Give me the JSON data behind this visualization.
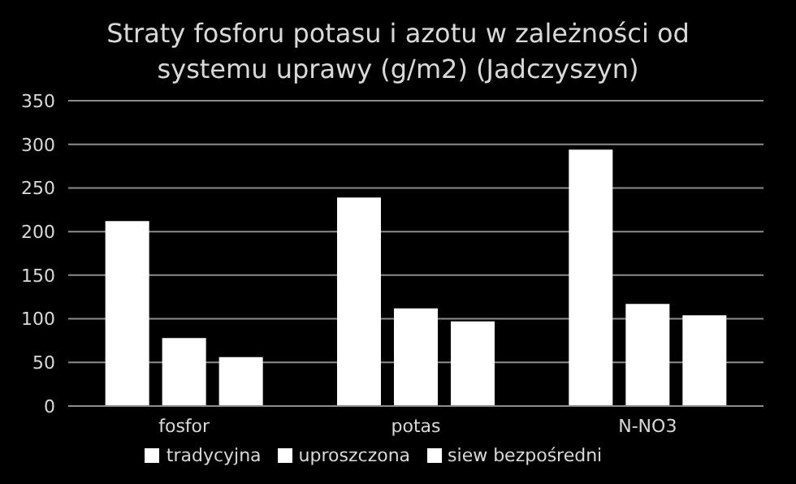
{
  "chart_data": {
    "type": "bar",
    "title": "Straty fosforu potasu i azotu w zależności od systemu uprawy (g/m2) (Jadczyszyn)",
    "categories": [
      "fosfor",
      "potas",
      "N-NO3"
    ],
    "series": [
      {
        "name": "tradycyjna",
        "color": "#ffffff",
        "values": [
          212,
          239,
          294
        ]
      },
      {
        "name": "uproszczona",
        "color": "#ffffff",
        "values": [
          78,
          112,
          117
        ]
      },
      {
        "name": "siew bezpośredni",
        "color": "#ffffff",
        "values": [
          56,
          97,
          104
        ]
      }
    ],
    "ylim": [
      0,
      350
    ],
    "yticks": [
      0,
      50,
      100,
      150,
      200,
      250,
      300,
      350
    ],
    "grid": "y",
    "legend": "bottom"
  }
}
